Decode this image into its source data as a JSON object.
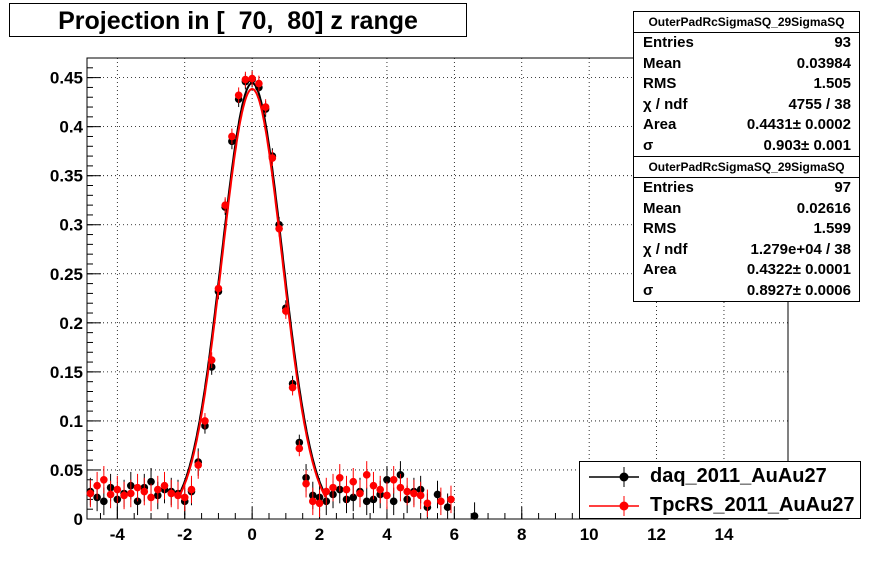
{
  "title": "Projection in [  70,  80] z range",
  "stats": [
    {
      "name": "OuterPadRcSigmaSQ_29SigmaSQ",
      "rows": [
        {
          "label": "Entries",
          "value": "93"
        },
        {
          "label": "Mean",
          "value": "0.03984"
        },
        {
          "label": "RMS",
          "value": "1.505"
        },
        {
          "label": "χ / ndf",
          "value": "4755 / 38"
        },
        {
          "label": "Area",
          "value": "0.4431± 0.0002"
        },
        {
          "label": "σ",
          "value": "0.903± 0.001"
        }
      ]
    },
    {
      "name": "OuterPadRcSigmaSQ_29SigmaSQ",
      "rows": [
        {
          "label": "Entries",
          "value": "97"
        },
        {
          "label": "Mean",
          "value": "0.02616"
        },
        {
          "label": "RMS",
          "value": "1.599"
        },
        {
          "label": "χ / ndf",
          "value": "1.279e+04 / 38"
        },
        {
          "label": "Area",
          "value": "0.4322± 0.0001"
        },
        {
          "label": "σ",
          "value": "0.8927± 0.0006"
        }
      ]
    }
  ],
  "legend": [
    {
      "label": "daq_2011_AuAu27",
      "color": "#000000"
    },
    {
      "label": "TpcRS_2011_AuAu27",
      "color": "#ff0000"
    }
  ],
  "chart_data": {
    "type": "scatter",
    "title": "Projection in [  70,  80] z range",
    "xlabel": "",
    "ylabel": "",
    "xlim": [
      -4.9,
      15.9
    ],
    "ylim": [
      0,
      0.47
    ],
    "grid": true,
    "x_ticks": [
      -4,
      -2,
      0,
      2,
      4,
      6,
      8,
      10,
      12,
      14
    ],
    "y_ticks": [
      0,
      0.05,
      0.1,
      0.15,
      0.2,
      0.25,
      0.3,
      0.35,
      0.4,
      0.45
    ],
    "y_tick_labels": [
      "0",
      "0.05",
      "0.1",
      "0.15",
      "0.2",
      "0.25",
      "0.3",
      "0.35",
      "0.4",
      "0.45"
    ],
    "legend_position": "bottom-right",
    "series": [
      {
        "name": "daq_2011_AuAu27",
        "color": "#000000",
        "fit": {
          "area": 0.4431,
          "sigma": 0.903
        },
        "x": [
          -4.8,
          -4.6,
          -4.4,
          -4.2,
          -4.0,
          -3.8,
          -3.6,
          -3.4,
          -3.2,
          -3.0,
          -2.8,
          -2.6,
          -2.4,
          -2.2,
          -2.0,
          -1.8,
          -1.6,
          -1.4,
          -1.2,
          -1.0,
          -0.8,
          -0.6,
          -0.4,
          -0.2,
          0.0,
          0.2,
          0.4,
          0.6,
          0.8,
          1.0,
          1.2,
          1.4,
          1.6,
          1.8,
          2.0,
          2.2,
          2.4,
          2.6,
          2.8,
          3.0,
          3.2,
          3.4,
          3.6,
          3.8,
          4.0,
          4.2,
          4.4,
          4.6,
          4.8,
          5.0,
          5.2,
          5.5,
          5.8,
          6.6
        ],
        "y": [
          0.028,
          0.022,
          0.018,
          0.032,
          0.02,
          0.026,
          0.034,
          0.018,
          0.032,
          0.038,
          0.024,
          0.03,
          0.028,
          0.026,
          0.018,
          0.028,
          0.058,
          0.095,
          0.155,
          0.232,
          0.318,
          0.385,
          0.428,
          0.446,
          0.448,
          0.44,
          0.418,
          0.37,
          0.3,
          0.215,
          0.138,
          0.078,
          0.042,
          0.024,
          0.022,
          0.018,
          0.025,
          0.03,
          0.02,
          0.022,
          0.028,
          0.018,
          0.02,
          0.025,
          0.04,
          0.018,
          0.045,
          0.02,
          0.028,
          0.03,
          0.012,
          0.025,
          0.012,
          0.003
        ]
      },
      {
        "name": "TpcRS_2011_AuAu27",
        "color": "#ff0000",
        "fit": {
          "area": 0.4322,
          "sigma": 0.8927
        },
        "x": [
          -4.8,
          -4.6,
          -4.4,
          -4.2,
          -4.0,
          -3.8,
          -3.6,
          -3.4,
          -3.2,
          -3.0,
          -2.8,
          -2.6,
          -2.4,
          -2.2,
          -2.0,
          -1.8,
          -1.6,
          -1.4,
          -1.2,
          -1.0,
          -0.8,
          -0.6,
          -0.4,
          -0.2,
          0.0,
          0.2,
          0.4,
          0.6,
          0.8,
          1.0,
          1.2,
          1.4,
          1.6,
          1.8,
          2.0,
          2.2,
          2.4,
          2.6,
          2.8,
          3.0,
          3.2,
          3.4,
          3.6,
          3.8,
          4.0,
          4.2,
          4.4,
          4.6,
          4.8,
          5.0,
          5.2,
          5.6,
          5.9
        ],
        "y": [
          0.026,
          0.034,
          0.04,
          0.025,
          0.03,
          0.024,
          0.026,
          0.032,
          0.028,
          0.022,
          0.03,
          0.034,
          0.026,
          0.024,
          0.022,
          0.03,
          0.055,
          0.1,
          0.162,
          0.235,
          0.32,
          0.39,
          0.432,
          0.448,
          0.449,
          0.444,
          0.42,
          0.368,
          0.296,
          0.212,
          0.134,
          0.072,
          0.036,
          0.018,
          0.016,
          0.028,
          0.032,
          0.042,
          0.03,
          0.038,
          0.026,
          0.045,
          0.034,
          0.03,
          0.024,
          0.04,
          0.032,
          0.028,
          0.026,
          0.024,
          0.016,
          0.018,
          0.02
        ]
      }
    ]
  }
}
